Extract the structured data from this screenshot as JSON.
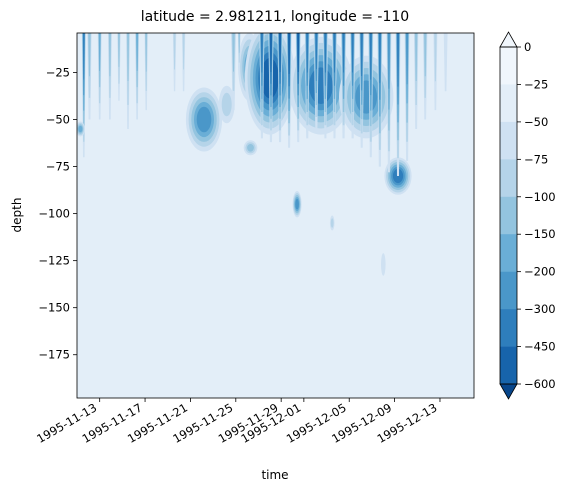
{
  "chart_data": {
    "type": "heatmap",
    "title": "latitude = 2.981211, longitude = -110",
    "xlabel": "time",
    "ylabel": "depth",
    "xticks": [
      "1995-11-13",
      "1995-11-17",
      "1995-11-21",
      "1995-11-25",
      "1995-11-29",
      "1995-12-01",
      "1995-12-05",
      "1995-12-09",
      "1995-12-13"
    ],
    "xrange": [
      "1995-11-11",
      "1995-12-16"
    ],
    "yticks": [
      -25,
      -50,
      -75,
      -100,
      -125,
      -150,
      -175
    ],
    "ylim": [
      -198,
      -4
    ],
    "colorbar": {
      "levels": [
        0,
        -25,
        -50,
        -75,
        -100,
        -150,
        -200,
        -300,
        -450,
        -600
      ],
      "extend": "both",
      "colors": [
        "#f0f6fc",
        "#e3eef8",
        "#cfe1f2",
        "#b5d4e9",
        "#93c4df",
        "#6aaed6",
        "#4a97c9",
        "#2e7ebc",
        "#1764ab",
        "#08468b"
      ]
    },
    "background_level": "0 to -25",
    "features": [
      {
        "shape": "streak",
        "t": 0.6,
        "top": -4,
        "bottom": -70,
        "level_min": -300,
        "width": 0.35
      },
      {
        "shape": "streak",
        "t": 1.1,
        "top": -4,
        "bottom": -50,
        "level_min": -100,
        "width": 0.4
      },
      {
        "shape": "streak",
        "t": 2.0,
        "top": -4,
        "bottom": -50,
        "level_min": -150,
        "width": 0.35
      },
      {
        "shape": "streak",
        "t": 2.9,
        "top": -4,
        "bottom": -50,
        "level_min": -100,
        "width": 0.35
      },
      {
        "shape": "streak",
        "t": 3.7,
        "top": -4,
        "bottom": -40,
        "level_min": -100,
        "width": 0.3
      },
      {
        "shape": "streak",
        "t": 4.5,
        "top": -4,
        "bottom": -55,
        "level_min": -100,
        "width": 0.35
      },
      {
        "shape": "streak",
        "t": 5.3,
        "top": -4,
        "bottom": -50,
        "level_min": -150,
        "width": 0.35
      },
      {
        "shape": "streak",
        "t": 6.1,
        "top": -4,
        "bottom": -45,
        "level_min": -100,
        "width": 0.3
      },
      {
        "shape": "streak",
        "t": 8.6,
        "top": -4,
        "bottom": -35,
        "level_min": -75,
        "width": 0.3
      },
      {
        "shape": "streak",
        "t": 9.4,
        "top": -4,
        "bottom": -35,
        "level_min": -75,
        "width": 0.3
      },
      {
        "shape": "blob",
        "t": 11.2,
        "depth": -50,
        "half_t": 1.6,
        "half_d": 17,
        "level_min": -200
      },
      {
        "shape": "blob",
        "t": 13.2,
        "depth": -42,
        "half_t": 0.7,
        "half_d": 10,
        "level_min": -75
      },
      {
        "shape": "blob",
        "t": 15.2,
        "depth": -22,
        "half_t": 1.0,
        "half_d": 18,
        "level_min": -150
      },
      {
        "shape": "blob",
        "t": 17.0,
        "depth": -28,
        "half_t": 2.2,
        "half_d": 30,
        "level_min": -450
      },
      {
        "shape": "blob",
        "t": 21.5,
        "depth": -32,
        "half_t": 2.8,
        "half_d": 26,
        "level_min": -300
      },
      {
        "shape": "blob",
        "t": 25.5,
        "depth": -38,
        "half_t": 2.4,
        "half_d": 22,
        "level_min": -200
      },
      {
        "shape": "blob",
        "t": 28.3,
        "depth": -80,
        "half_t": 1.2,
        "half_d": 10,
        "level_min": -300
      },
      {
        "shape": "blob",
        "t": 19.4,
        "depth": -95,
        "half_t": 0.4,
        "half_d": 7,
        "level_min": -200
      },
      {
        "shape": "blob",
        "t": 0.3,
        "depth": -55,
        "half_t": 0.4,
        "half_d": 4,
        "level_min": -150
      },
      {
        "shape": "blob",
        "t": 15.3,
        "depth": -65,
        "half_t": 0.6,
        "half_d": 4,
        "level_min": -100
      },
      {
        "shape": "blob",
        "t": 22.5,
        "depth": -105,
        "half_t": 0.2,
        "half_d": 4,
        "level_min": -75
      },
      {
        "shape": "blob",
        "t": 27.0,
        "depth": -127,
        "half_t": 0.2,
        "half_d": 6,
        "level_min": -50
      },
      {
        "shape": "streak",
        "t": 13.8,
        "top": -4,
        "bottom": -45,
        "level_min": -100,
        "width": 0.45
      },
      {
        "shape": "streak",
        "t": 14.3,
        "top": -4,
        "bottom": -25,
        "level_min": -100,
        "width": 0.25
      },
      {
        "shape": "streak",
        "t": 16.3,
        "top": -4,
        "bottom": -60,
        "level_min": -300,
        "width": 0.45
      },
      {
        "shape": "streak",
        "t": 17.1,
        "top": -4,
        "bottom": -62,
        "level_min": -450,
        "width": 0.45
      },
      {
        "shape": "streak",
        "t": 17.9,
        "top": -4,
        "bottom": -62,
        "level_min": -450,
        "width": 0.45
      },
      {
        "shape": "streak",
        "t": 18.7,
        "top": -4,
        "bottom": -65,
        "level_min": -450,
        "width": 0.45
      },
      {
        "shape": "streak",
        "t": 19.5,
        "top": -4,
        "bottom": -62,
        "level_min": -450,
        "width": 0.45
      },
      {
        "shape": "streak",
        "t": 20.3,
        "top": -4,
        "bottom": -60,
        "level_min": -300,
        "width": 0.45
      },
      {
        "shape": "streak",
        "t": 21.1,
        "top": -4,
        "bottom": -55,
        "level_min": -300,
        "width": 0.45
      },
      {
        "shape": "streak",
        "t": 21.9,
        "top": -4,
        "bottom": -60,
        "level_min": -300,
        "width": 0.45
      },
      {
        "shape": "streak",
        "t": 22.7,
        "top": -4,
        "bottom": -60,
        "level_min": -300,
        "width": 0.45
      },
      {
        "shape": "streak",
        "t": 23.5,
        "top": -4,
        "bottom": -60,
        "level_min": -300,
        "width": 0.45
      },
      {
        "shape": "streak",
        "t": 24.3,
        "top": -4,
        "bottom": -60,
        "level_min": -300,
        "width": 0.45
      },
      {
        "shape": "streak",
        "t": 25.1,
        "top": -4,
        "bottom": -65,
        "level_min": -300,
        "width": 0.45
      },
      {
        "shape": "streak",
        "t": 25.9,
        "top": -4,
        "bottom": -70,
        "level_min": -300,
        "width": 0.45
      },
      {
        "shape": "streak",
        "t": 26.7,
        "top": -4,
        "bottom": -75,
        "level_min": -300,
        "width": 0.45
      },
      {
        "shape": "streak",
        "t": 27.5,
        "top": -4,
        "bottom": -78,
        "level_min": -200,
        "width": 0.45
      },
      {
        "shape": "streak",
        "t": 28.3,
        "top": -4,
        "bottom": -80,
        "level_min": -300,
        "width": 0.45
      },
      {
        "shape": "streak",
        "t": 29.1,
        "top": -4,
        "bottom": -72,
        "level_min": -200,
        "width": 0.45
      },
      {
        "shape": "streak",
        "t": 29.9,
        "top": -4,
        "bottom": -55,
        "level_min": -100,
        "width": 0.4
      },
      {
        "shape": "streak",
        "t": 30.7,
        "top": -4,
        "bottom": -50,
        "level_min": -100,
        "width": 0.4
      },
      {
        "shape": "streak",
        "t": 31.6,
        "top": -4,
        "bottom": -45,
        "level_min": -75,
        "width": 0.35
      },
      {
        "shape": "streak",
        "t": 32.5,
        "top": -4,
        "bottom": -35,
        "level_min": -50,
        "width": 0.35
      }
    ]
  }
}
